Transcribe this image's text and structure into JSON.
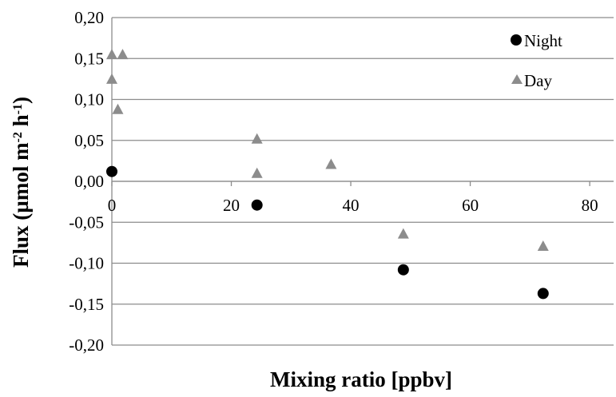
{
  "chart_data": {
    "type": "scatter",
    "title": "",
    "xlabel": "Mixing ratio [ppbv]",
    "ylabel": {
      "base": "Flux (µmol m",
      "sup1": "-2",
      "mid": " h",
      "sup2": "-1",
      "end": ")"
    },
    "xlim": [
      0,
      84
    ],
    "ylim": [
      -0.2,
      0.2
    ],
    "x_ticks": [
      0,
      20,
      40,
      60,
      80
    ],
    "x_tick_labels": [
      "0",
      "20",
      "40",
      "60",
      "80"
    ],
    "y_ticks": [
      0.2,
      0.15,
      0.1,
      0.05,
      0.0,
      -0.05,
      -0.1,
      -0.15,
      -0.2
    ],
    "y_tick_labels": [
      "0,20",
      "0,15",
      "0,10",
      "0,05",
      "0,00",
      "-0,05",
      "-0,10",
      "-0,15",
      "-0,20"
    ],
    "grid": "horizontal",
    "legend_position": "top-right",
    "series": [
      {
        "name": "Night",
        "marker": "circle",
        "color": "#000000",
        "points": [
          {
            "x": 0.0,
            "y": 0.012
          },
          {
            "x": 24.3,
            "y": -0.029
          },
          {
            "x": 48.8,
            "y": -0.108
          },
          {
            "x": 72.2,
            "y": -0.137
          }
        ]
      },
      {
        "name": "Day",
        "marker": "triangle",
        "color": "#8c8c8c",
        "points": [
          {
            "x": 0.0,
            "y": 0.155
          },
          {
            "x": 1.8,
            "y": 0.155
          },
          {
            "x": 0.0,
            "y": 0.125
          },
          {
            "x": 1.0,
            "y": 0.088
          },
          {
            "x": 24.3,
            "y": 0.052
          },
          {
            "x": 24.3,
            "y": 0.01
          },
          {
            "x": 36.7,
            "y": 0.021
          },
          {
            "x": 48.8,
            "y": -0.064
          },
          {
            "x": 72.2,
            "y": -0.079
          }
        ]
      }
    ]
  }
}
